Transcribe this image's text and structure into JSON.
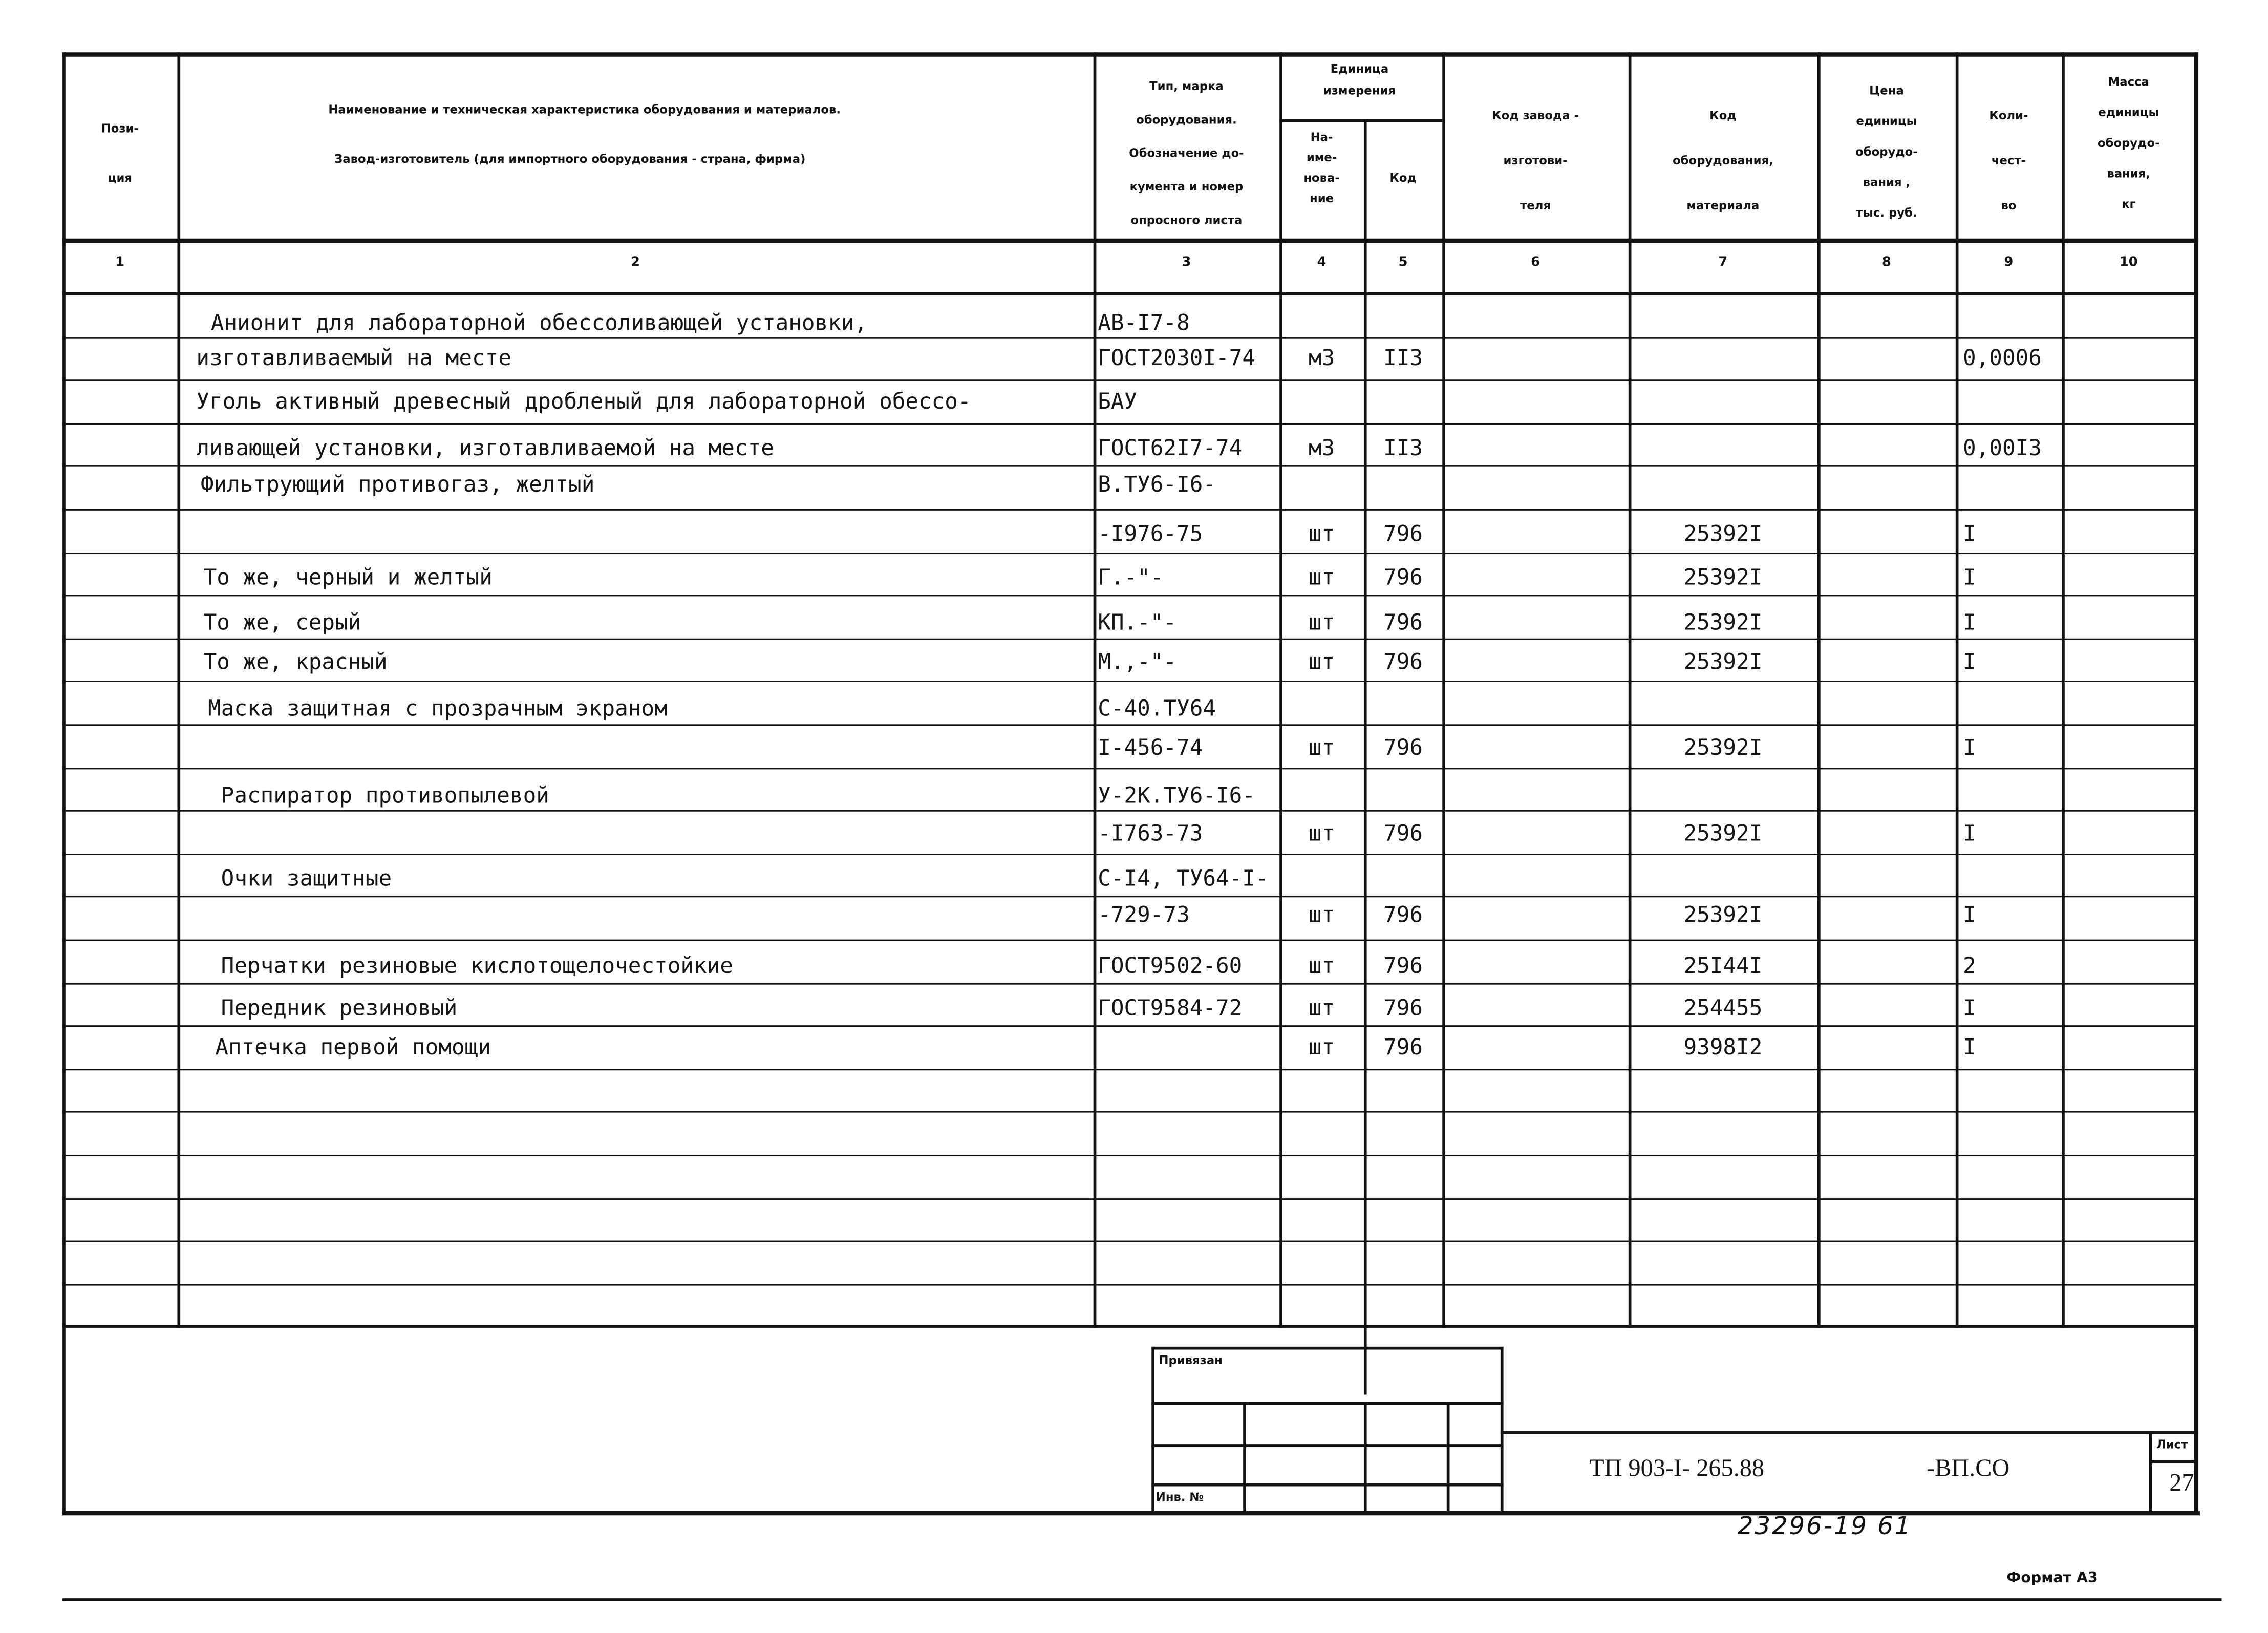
{
  "header": {
    "col1": "Пози-\nция",
    "col2_line1": "Наименование и техническая характеристика  оборудования и материалов.",
    "col2_line2": "Завод-изготовитель  (для импортного оборудования -  страна, фирма)",
    "col3": "Тип,      марка\nоборудования.\nОбозначение  до-\nкумента  и  номер\nопросного листа",
    "unit_group": "Единица\nизмерения",
    "col4": "На-\nиме-\nнова-\nние",
    "col5": "Код",
    "col6": "Код  завода -\nизготови-\nтеля",
    "col7": "Код\nоборудования,\nматериала",
    "col8": "Цена\nединицы\nоборудо-\nвания ,\nтыс. руб.",
    "col9": "Коли-\nчест-\nво",
    "col10": "Масса\nединицы\nоборудо-\nвания,\nкг"
  },
  "column_numbers": [
    "1",
    "2",
    "3",
    "4",
    "5",
    "6",
    "7",
    "8",
    "9",
    "10"
  ],
  "rows": [
    {
      "name": "Анионит для лабораторной обессоливающей установки,",
      "doc": "АВ-I7-8",
      "unit": "",
      "code": "",
      "equip": "",
      "qty": ""
    },
    {
      "name": "изготавливаемый на месте",
      "doc": "ГОСТ2030I-74",
      "unit": "м3",
      "code": "II3",
      "equip": "",
      "qty": "0,0006"
    },
    {
      "name": "Уголь активный древесный дробленый для лабораторной обессо-",
      "doc": "БАУ",
      "unit": "",
      "code": "",
      "equip": "",
      "qty": ""
    },
    {
      "name": "ливающей установки, изготавливаемой на месте",
      "doc": "ГОСТ62I7-74",
      "unit": "м3",
      "code": "II3",
      "equip": "",
      "qty": "0,00I3"
    },
    {
      "name": "Фильтрующий противогаз, желтый",
      "doc": "В.ТУ6-I6-",
      "unit": "",
      "code": "",
      "equip": "",
      "qty": ""
    },
    {
      "name": "",
      "doc": "-I976-75",
      "unit": "шт",
      "code": "796",
      "equip": "25392I",
      "qty": "I"
    },
    {
      "name": "То же, черный и желтый",
      "doc": "Г.-\"-",
      "unit": "шт",
      "code": "796",
      "equip": "25392I",
      "qty": "I"
    },
    {
      "name": "То же, серый",
      "doc": "КП.-\"-",
      "unit": "шт",
      "code": "796",
      "equip": "25392I",
      "qty": "I"
    },
    {
      "name": "То же, красный",
      "doc": "М.,-\"-",
      "unit": "шт",
      "code": "796",
      "equip": "25392I",
      "qty": "I"
    },
    {
      "name": "Маска защитная с прозрачным экраном",
      "doc": "С-40.ТУ64",
      "unit": "",
      "code": "",
      "equip": "",
      "qty": ""
    },
    {
      "name": "",
      "doc": "I-456-74",
      "unit": "шт",
      "code": "796",
      "equip": "25392I",
      "qty": "I"
    },
    {
      "name": "Распиратор противопылевой",
      "doc": "У-2К.ТУ6-I6-",
      "unit": "",
      "code": "",
      "equip": "",
      "qty": ""
    },
    {
      "name": "",
      "doc": "-I763-73",
      "unit": "шт",
      "code": "796",
      "equip": "25392I",
      "qty": "I"
    },
    {
      "name": "Очки защитные",
      "doc": "С-I4, ТУ64-I-",
      "unit": "",
      "code": "",
      "equip": "",
      "qty": ""
    },
    {
      "name": "",
      "doc": "-729-73",
      "unit": "шт",
      "code": "796",
      "equip": "25392I",
      "qty": "I"
    },
    {
      "name": "Перчатки резиновые кислотощелочестойкие",
      "doc": "ГОСТ9502-60",
      "unit": "шт",
      "code": "796",
      "equip": "25I44I",
      "qty": "2"
    },
    {
      "name": "Передник резиновый",
      "doc": "ГОСТ9584-72",
      "unit": "шт",
      "code": "796",
      "equip": "254455",
      "qty": "I"
    },
    {
      "name": "Аптечка первой помощи",
      "doc": "",
      "unit": "шт",
      "code": "796",
      "equip": "9398I2",
      "qty": "I"
    }
  ],
  "title_block": {
    "bound_label": "Привязан",
    "inv_label": "Инв. №",
    "designation": "ТП 903-I- 265.88",
    "designation_suffix": "-ВП.СО",
    "sheet_label": "Лист",
    "sheet_number": "27"
  },
  "handwritten_number": "23296-19  61",
  "format_label": "Формат А3"
}
